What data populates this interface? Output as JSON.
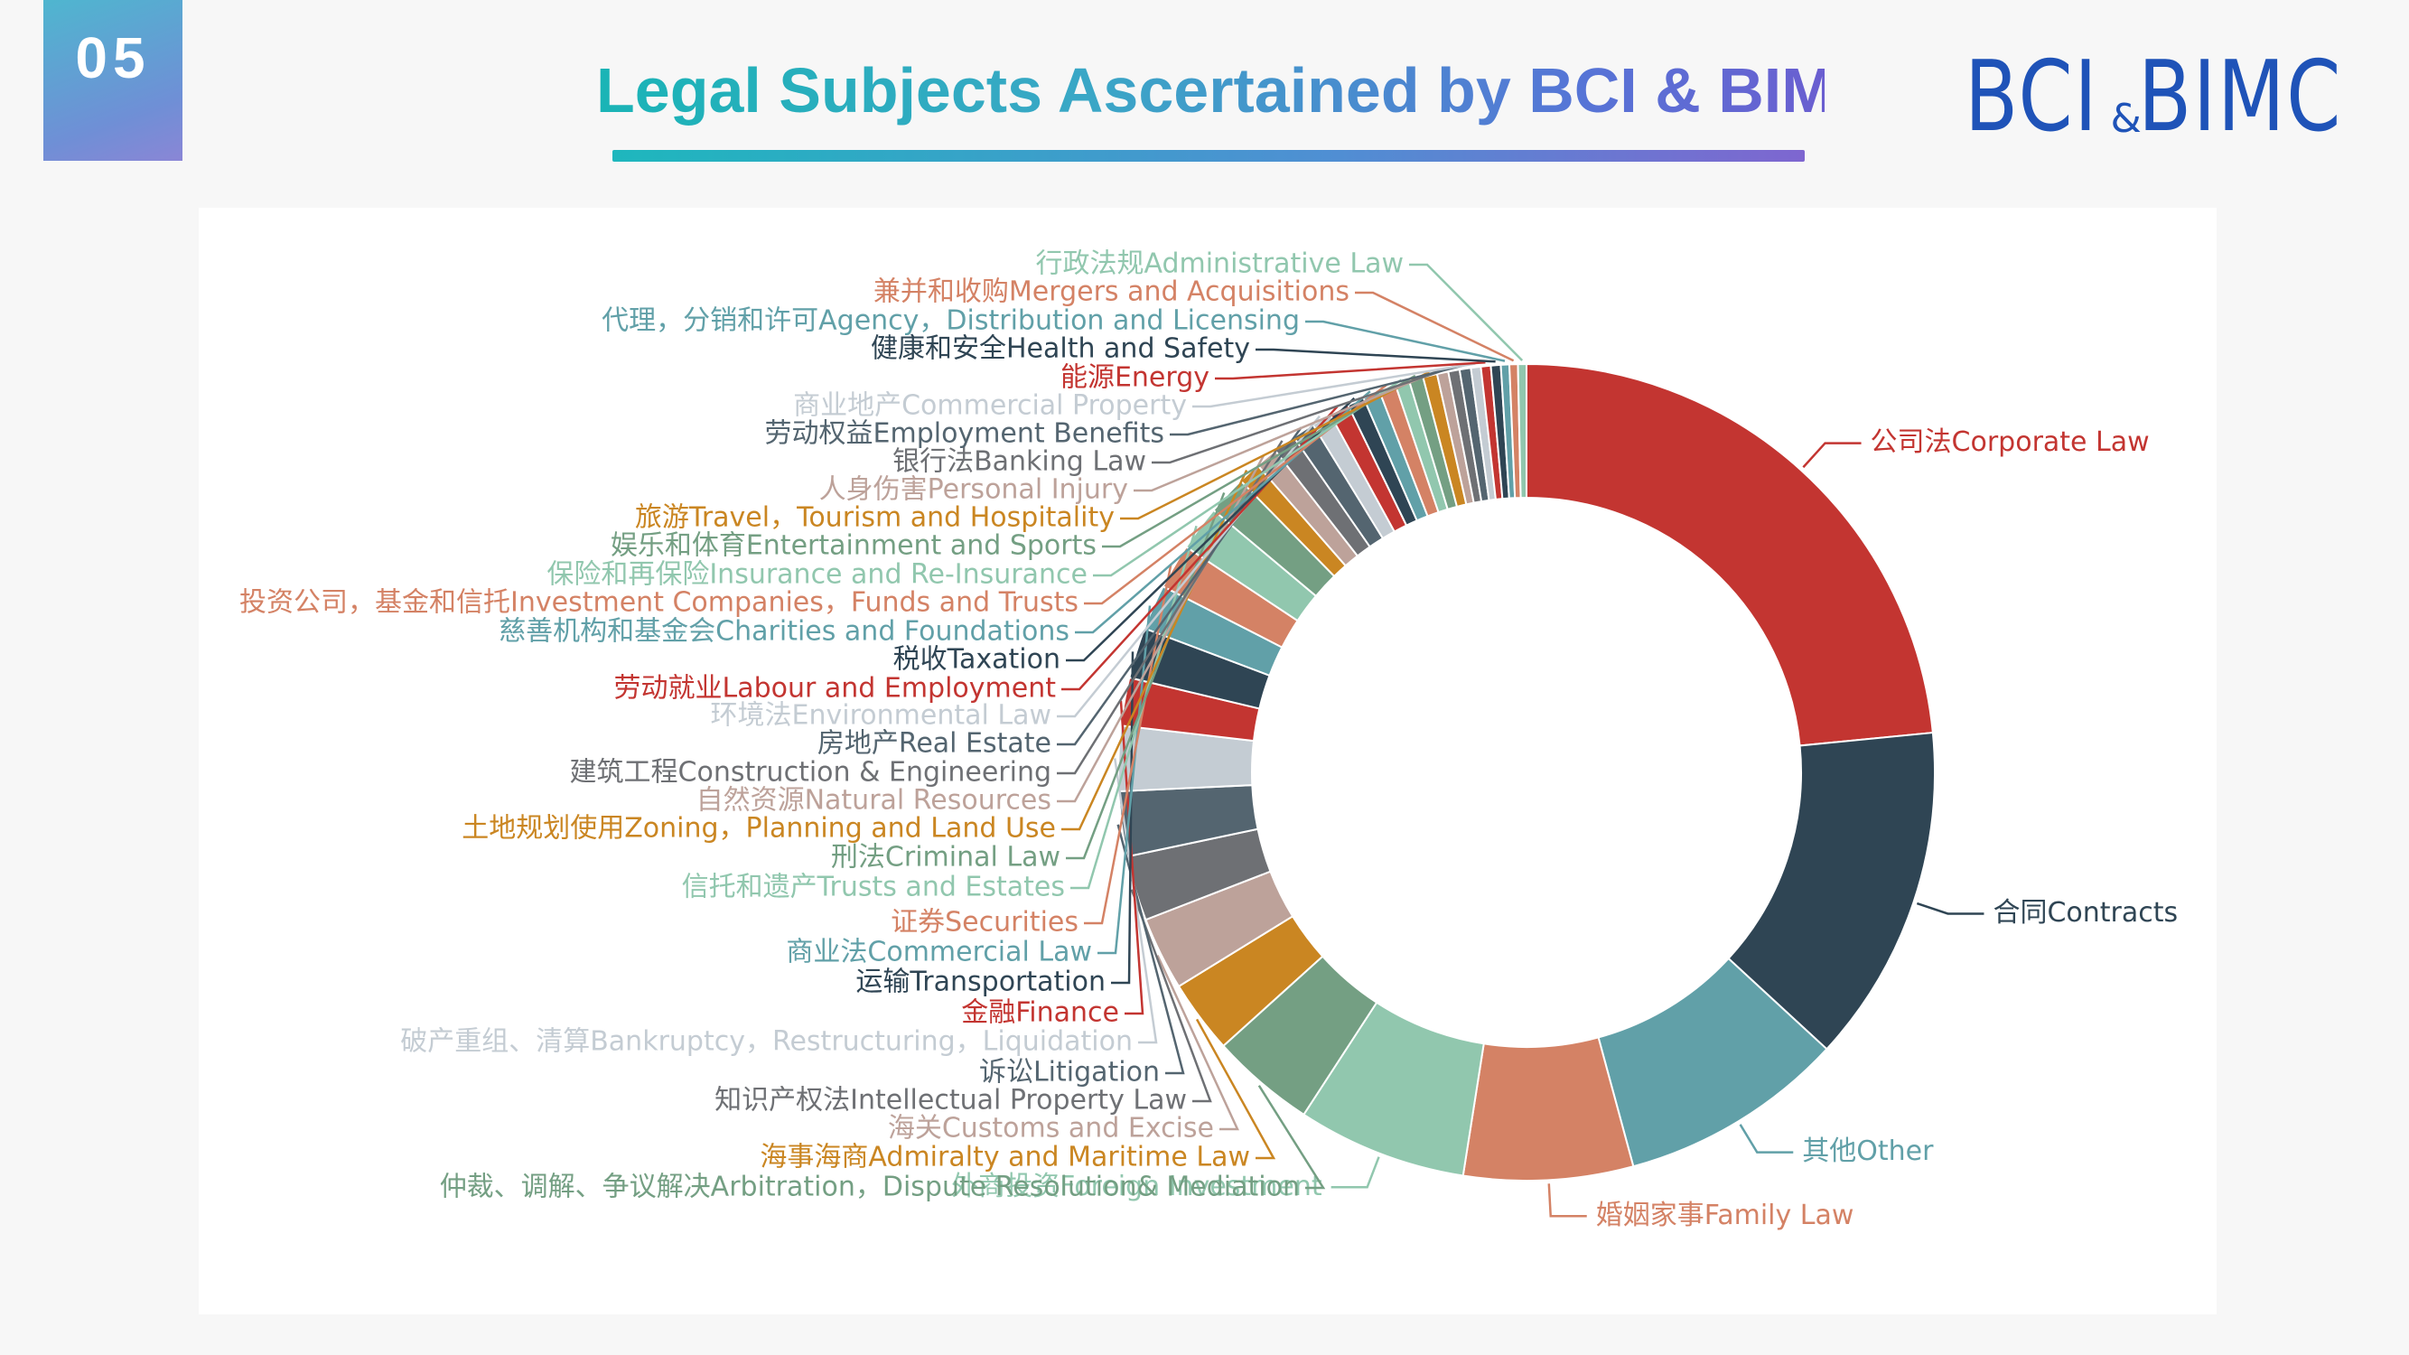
{
  "header": {
    "badge": "05",
    "title": "Legal Subjects Ascertained by BCI & BIMC",
    "logo_left": "BCI",
    "logo_amp": "&",
    "logo_right": "BIMC"
  },
  "colors": {
    "accent": "#2a9fc2",
    "logo": "#1f53b8"
  },
  "chart_data": {
    "type": "pie",
    "donut": true,
    "legend": "none",
    "slices": [
      {
        "label": "公司法Corporate Law",
        "value": 21.0,
        "color": "#c33531"
      },
      {
        "label": "合同Contracts",
        "value": 12.0,
        "color": "#2f4554"
      },
      {
        "label": "其他Other",
        "value": 8.0,
        "color": "#61a0a8"
      },
      {
        "label": "婚姻家事Family Law",
        "value": 6.0,
        "color": "#d48265"
      },
      {
        "label": "外商投资Foreign Investment",
        "value": 6.0,
        "color": "#91c7ae"
      },
      {
        "label": "仲裁、调解、争议解决Arbitration，Dispute Resolution& Mediation",
        "value": 3.7,
        "color": "#749f83"
      },
      {
        "label": "海事海商Admiralty and Maritime Law",
        "value": 2.6,
        "color": "#ca8622"
      },
      {
        "label": "海关Customs and Excise",
        "value": 2.6,
        "color": "#bda29a"
      },
      {
        "label": "知识产权法Intellectual Property Law",
        "value": 2.3,
        "color": "#6e7074"
      },
      {
        "label": "诉讼Litigation",
        "value": 2.3,
        "color": "#546570"
      },
      {
        "label": "破产重组、清算Bankruptcy，Restructuring，Liquidation",
        "value": 2.3,
        "color": "#c4ccd3"
      },
      {
        "label": "金融Finance",
        "value": 1.7,
        "color": "#c33531"
      },
      {
        "label": "运输Transportation",
        "value": 1.8,
        "color": "#2f4554"
      },
      {
        "label": "商业法Commercial Law",
        "value": 1.6,
        "color": "#61a0a8"
      },
      {
        "label": "证券Securities",
        "value": 1.6,
        "color": "#d48265"
      },
      {
        "label": "信托和遗产Trusts and Estates",
        "value": 1.6,
        "color": "#91c7ae"
      },
      {
        "label": "刑法Criminal Law",
        "value": 1.4,
        "color": "#749f83"
      },
      {
        "label": "土地规划使用Zoning，Planning and Land Use",
        "value": 0.8,
        "color": "#ca8622"
      },
      {
        "label": "自然资源Natural Resources",
        "value": 0.8,
        "color": "#bda29a"
      },
      {
        "label": "建筑工程Construction & Engineering",
        "value": 0.8,
        "color": "#6e7074"
      },
      {
        "label": "房地产Real Estate",
        "value": 0.8,
        "color": "#546570"
      },
      {
        "label": "环境法Environmental Law",
        "value": 0.7,
        "color": "#c4ccd3"
      },
      {
        "label": "劳动就业Labour and Employment",
        "value": 0.7,
        "color": "#c33531"
      },
      {
        "label": "税收Taxation",
        "value": 0.6,
        "color": "#2f4554"
      },
      {
        "label": "慈善机构和基金会Charities and Foundations",
        "value": 0.6,
        "color": "#61a0a8"
      },
      {
        "label": "投资公司，基金和信托Investment Companies，Funds and Trusts",
        "value": 0.6,
        "color": "#d48265"
      },
      {
        "label": "保险和再保险Insurance and Re-Insurance",
        "value": 0.5,
        "color": "#91c7ae"
      },
      {
        "label": "娱乐和体育Entertainment and Sports",
        "value": 0.5,
        "color": "#749f83"
      },
      {
        "label": "旅游Travel，Tourism and Hospitality",
        "value": 0.5,
        "color": "#ca8622"
      },
      {
        "label": "人身伤害Personal Injury",
        "value": 0.4,
        "color": "#bda29a"
      },
      {
        "label": "银行法Banking Law",
        "value": 0.4,
        "color": "#6e7074"
      },
      {
        "label": "劳动权益Employment Benefits",
        "value": 0.4,
        "color": "#546570"
      },
      {
        "label": "商业地产Commercial Property",
        "value": 0.35,
        "color": "#c4ccd3"
      },
      {
        "label": "能源Energy",
        "value": 0.35,
        "color": "#c33531"
      },
      {
        "label": "健康和安全Health and Safety",
        "value": 0.35,
        "color": "#2f4554"
      },
      {
        "label": "代理，分销和许可Agency，Distribution and Licensing",
        "value": 0.3,
        "color": "#61a0a8"
      },
      {
        "label": "兼并和收购Mergers and Acquisitions",
        "value": 0.3,
        "color": "#d48265"
      },
      {
        "label": "行政法规Administrative Law",
        "value": 0.3,
        "color": "#91c7ae"
      }
    ]
  }
}
